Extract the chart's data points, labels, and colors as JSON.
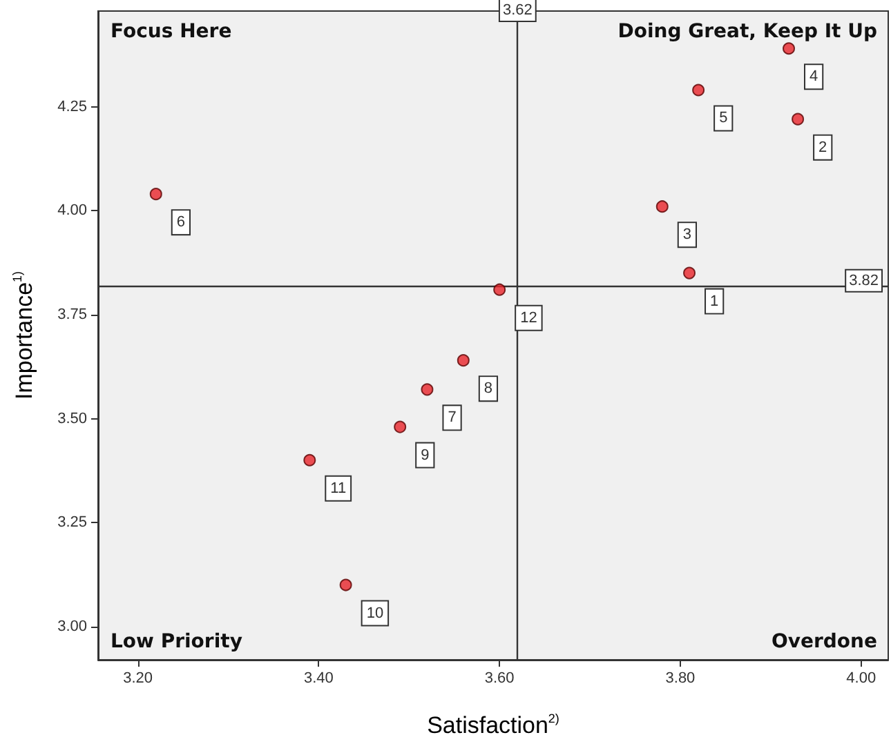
{
  "chart_data": {
    "type": "scatter",
    "xlabel": "Satisfaction$^{2)}$",
    "ylabel": "Importance$^{1)}$",
    "x": [
      3.81,
      3.93,
      3.78,
      3.92,
      3.82,
      3.22,
      3.52,
      3.56,
      3.49,
      3.43,
      3.39,
      3.6
    ],
    "series": [
      {
        "color": "#e8242a",
        "values": [
          3.85,
          4.22,
          4.01,
          4.39,
          4.29,
          4.04,
          3.57,
          3.64,
          3.48,
          3.1,
          3.4,
          3.81
        ]
      }
    ],
    "xlim": [
      3.156,
      4.03
    ],
    "ylim": [
      2.92,
      4.48
    ],
    "xticks": [
      {
        "value": 3.2,
        "label": "3.20"
      },
      {
        "value": 3.4,
        "label": "3.40"
      },
      {
        "value": 3.6,
        "label": "3.60"
      },
      {
        "value": 3.8,
        "label": "3.80"
      },
      {
        "value": 4.0,
        "label": "4.00"
      }
    ],
    "yticks": [
      {
        "value": 3.0,
        "label": "3.00"
      },
      {
        "value": 3.25,
        "label": "3.25"
      },
      {
        "value": 3.5,
        "label": "3.50"
      },
      {
        "value": 3.75,
        "label": "3.75"
      },
      {
        "value": 4.0,
        "label": "4.00"
      },
      {
        "value": 4.25,
        "label": "4.25"
      }
    ],
    "ref_lines": [
      {
        "axis": "x",
        "value": 3.62,
        "label": "3.62",
        "color": "#333333"
      },
      {
        "axis": "y",
        "value": 3.82,
        "label": "3.82",
        "color": "#333333"
      }
    ],
    "annotations": [
      "Focus Here",
      "Doing Great, Keep It Up",
      "Low Priority",
      "Overdone",
      {
        "text": "1",
        "x": 3.81,
        "y": 3.85
      },
      {
        "text": "2",
        "x": 3.93,
        "y": 4.22
      },
      {
        "text": "3",
        "x": 3.78,
        "y": 4.01
      },
      {
        "text": "4",
        "x": 3.92,
        "y": 4.39
      },
      {
        "text": "5",
        "x": 3.82,
        "y": 4.29
      },
      {
        "text": "6",
        "x": 3.22,
        "y": 4.04
      },
      {
        "text": "7",
        "x": 3.52,
        "y": 3.57
      },
      {
        "text": "8",
        "x": 3.56,
        "y": 3.64
      },
      {
        "text": "9",
        "x": 3.49,
        "y": 3.48
      },
      {
        "text": "10",
        "x": 3.43,
        "y": 3.1
      },
      {
        "text": "11",
        "x": 3.39,
        "y": 3.4
      },
      {
        "text": "12",
        "x": 3.6,
        "y": 3.81
      }
    ],
    "grid": false,
    "marker": "circle"
  }
}
